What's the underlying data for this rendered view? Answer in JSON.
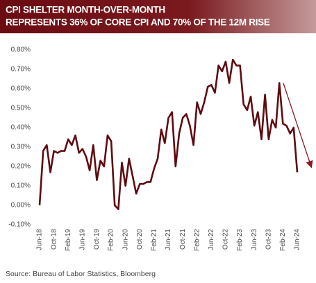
{
  "chart_data": {
    "type": "line",
    "title": [
      "CPI SHELTER MONTH-OVER-MONTH",
      "REPRESENTS 36% OF CORE CPI AND 70% OF THE 12M RISE"
    ],
    "source": "Source: Bureau of Labor Statistics, Bloomberg",
    "categories": [
      "Jun-18",
      null,
      null,
      null,
      "Oct-18",
      null,
      null,
      null,
      "Feb-19",
      null,
      null,
      null,
      "Jun-19",
      null,
      null,
      null,
      "Oct-19",
      null,
      null,
      null,
      "Feb-20",
      null,
      null,
      null,
      "Jun-20",
      null,
      null,
      null,
      "Oct-20",
      null,
      null,
      null,
      "Feb-21",
      null,
      null,
      null,
      "Jun-21",
      null,
      null,
      null,
      "Oct-21",
      null,
      null,
      null,
      "Feb-22",
      null,
      null,
      null,
      "Jun-22",
      null,
      null,
      null,
      "Oct-22",
      null,
      null,
      null,
      "Feb-23",
      null,
      null,
      null,
      "Jun-23",
      null,
      null,
      null,
      "Oct-23",
      null,
      null,
      null,
      "Feb-24",
      null,
      null,
      null,
      "Jun-24"
    ],
    "values": [
      0.0,
      0.28,
      0.31,
      0.17,
      0.28,
      0.27,
      0.28,
      0.28,
      0.34,
      0.31,
      0.36,
      0.27,
      0.29,
      0.25,
      0.18,
      0.31,
      0.13,
      0.23,
      0.2,
      0.36,
      0.33,
      0.0,
      -0.02,
      0.22,
      0.1,
      0.24,
      0.15,
      0.06,
      0.11,
      0.11,
      0.12,
      0.12,
      0.19,
      0.24,
      0.39,
      0.32,
      0.45,
      0.48,
      0.2,
      0.37,
      0.45,
      0.47,
      0.41,
      0.31,
      0.53,
      0.47,
      0.53,
      0.61,
      0.62,
      0.58,
      0.72,
      0.69,
      0.74,
      0.63,
      0.75,
      0.72,
      0.72,
      0.52,
      0.49,
      0.56,
      0.41,
      0.48,
      0.34,
      0.57,
      0.34,
      0.44,
      0.4,
      0.63,
      0.42,
      0.41,
      0.37,
      0.4,
      0.17
    ],
    "color": "#5e0b10",
    "ylim": [
      -0.1,
      0.8
    ],
    "yticks": [
      {
        "value": -0.1,
        "label": "-0.10%"
      },
      {
        "value": 0,
        "label": "0.00%"
      },
      {
        "value": 0.1,
        "label": "0.10%"
      },
      {
        "value": 0.2,
        "label": "0.20%"
      },
      {
        "value": 0.3,
        "label": "0.30%"
      },
      {
        "value": 0.4,
        "label": "0.40%"
      },
      {
        "value": 0.5,
        "label": "0.50%"
      },
      {
        "value": 0.6,
        "label": "0.60%"
      },
      {
        "value": 0.7,
        "label": "0.70%"
      },
      {
        "value": 0.8,
        "label": "0.80%"
      }
    ],
    "grid": false
  }
}
